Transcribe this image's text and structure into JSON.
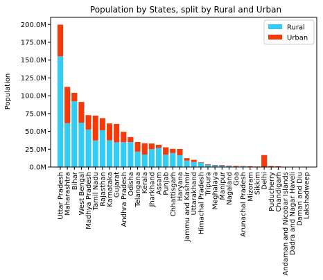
{
  "chart_data": {
    "type": "bar",
    "title": "Population by States, split by Rural and Urban",
    "xlabel": "",
    "ylabel": "Population",
    "ylim": [
      0,
      210000000
    ],
    "yticks": [
      0,
      25000000,
      50000000,
      75000000,
      100000000,
      125000000,
      150000000,
      175000000,
      200000000
    ],
    "ytick_labels": [
      "0.0M",
      "25.0M",
      "50.0M",
      "75.0M",
      "100.0M",
      "125.0M",
      "150.0M",
      "175.0M",
      "200.0M"
    ],
    "stacked": true,
    "legend_position": "top-right",
    "grid": false,
    "categories": [
      "Uttar Pradesh",
      "Maharashtra",
      "Bihar",
      "West Bengal",
      "Madhya Pradesh",
      "Tamil Nadu",
      "Rajasthan",
      "Karnataka",
      "Gujarat",
      "Andhra Pradesh",
      "Odisha",
      "Telangana",
      "Kerala",
      "Jharkhand",
      "Assam",
      "Punjab",
      "Chhattisgarh",
      "Haryana",
      "Jammu and Kashmir",
      "Uttarakhand",
      "Himachal Pradesh",
      "Tripura",
      "Meghalaya",
      "Manipur",
      "Nagaland",
      "Goa",
      "Arunachal Pradesh",
      "Mizoram",
      "Sikkim",
      "Delhi",
      "Puducherry",
      "Chandigarh",
      "Andaman and Nicobar Islands",
      "Dadra and Nagar Haveli",
      "Daman and Diu",
      "Lakshadweep"
    ],
    "series": [
      {
        "name": "Rural",
        "color": "#33ccf5",
        "values": [
          155300000,
          61600000,
          92300000,
          62200000,
          52600000,
          37200000,
          51500000,
          37500000,
          34700000,
          34800000,
          35000000,
          21600000,
          17500000,
          25000000,
          26800000,
          17300000,
          19600000,
          16500000,
          9100000,
          7000000,
          6200000,
          2700000,
          2400000,
          2000000,
          1400000,
          600000,
          1100000,
          500000,
          500000,
          400000,
          400000,
          30000,
          240000,
          180000,
          60000,
          10000
        ]
      },
      {
        "name": "Urban",
        "color": "#f53a0a",
        "values": [
          44500000,
          50800000,
          11800000,
          29100000,
          20100000,
          34900000,
          17100000,
          23600000,
          25700000,
          14600000,
          7000000,
          13400000,
          15900000,
          8000000,
          4400000,
          10400000,
          5900000,
          8800000,
          3400000,
          3100000,
          700000,
          1000000,
          600000,
          800000,
          600000,
          900000,
          300000,
          600000,
          200000,
          16400000,
          900000,
          1000000,
          140000,
          160000,
          180000,
          50000
        ]
      }
    ]
  }
}
